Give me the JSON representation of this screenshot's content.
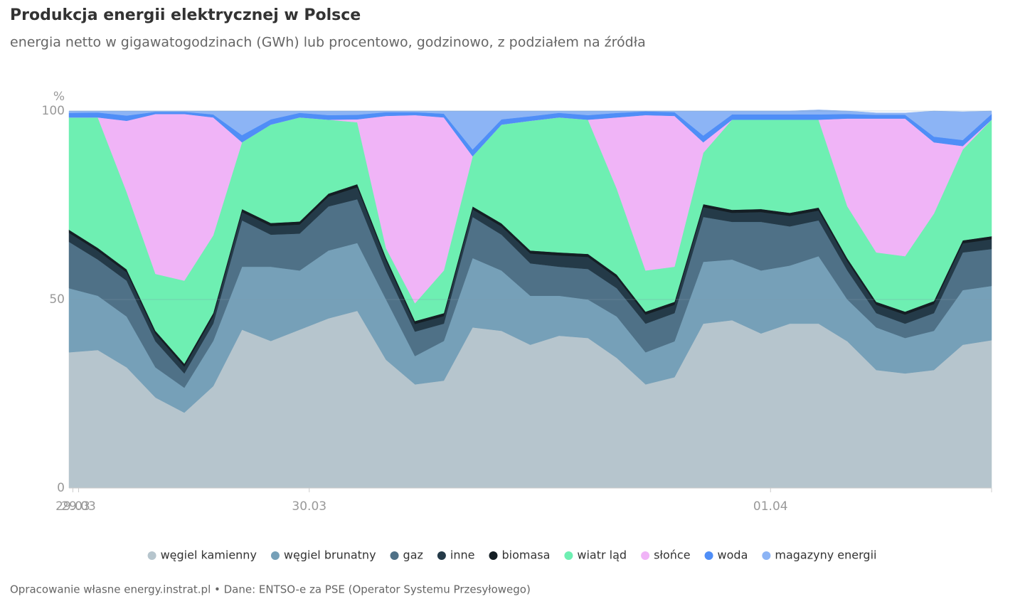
{
  "chart_data": {
    "type": "stacked_area",
    "title": "Produkcja energii elektrycznej w Polsce",
    "subtitle": "energia netto w gigawatogodzinach (GWh) lub procentowo, godzinowo, z podziałem na źródła",
    "y_label": "%",
    "source": "Opracowanie własne energy.instrat.pl • Dane: ENTSO-e za PSE (Operator Systemu Przesyłowego)",
    "x": [
      -1,
      2,
      5,
      8,
      11,
      14,
      17,
      20,
      23,
      26,
      29,
      32,
      35,
      38,
      41,
      44,
      47,
      50,
      53,
      56,
      59,
      62,
      65,
      68,
      71,
      74,
      77,
      80,
      83,
      86,
      89,
      92,
      95
    ],
    "xlim": [
      -1,
      95
    ],
    "xticks": [
      {
        "value": -0.6,
        "label": "29.03"
      },
      {
        "value": 0,
        "label": "29.03"
      },
      {
        "value": 24,
        "label": "30.03"
      },
      {
        "value": 72,
        "label": "01.04"
      }
    ],
    "ylim": [
      0,
      100
    ],
    "yticks": [
      0,
      50,
      100
    ],
    "grid": true,
    "series": [
      {
        "name": "węgiel kamienny",
        "color": "#b6c5cd",
        "values": [
          36,
          36.6,
          32,
          24,
          20,
          27,
          42,
          39,
          42,
          45,
          47,
          34,
          27.5,
          28.5,
          42.6,
          41.7,
          38,
          40.4,
          39.8,
          34.5,
          27.5,
          29.4,
          43.6,
          44.5,
          41,
          43.6,
          43.6,
          38.9,
          31.3,
          30.4,
          31.3,
          38,
          39.2
        ]
      },
      {
        "name": "węgiel brunatny",
        "color": "#76a0b8",
        "values": [
          17,
          14.4,
          13.5,
          8,
          6.6,
          12,
          16.7,
          19.7,
          15.7,
          18,
          18,
          16,
          7.5,
          10.5,
          18.4,
          16,
          13,
          10.6,
          10.2,
          11,
          8.5,
          9.5,
          16.4,
          16.1,
          16.7,
          15.4,
          17.9,
          11.1,
          11.3,
          9.4,
          10.4,
          14.5,
          14.4
        ]
      },
      {
        "name": "gaz",
        "color": "#4f7187",
        "values": [
          12.3,
          9.6,
          9.5,
          6.9,
          3.8,
          4.6,
          12.3,
          8.5,
          9.8,
          11.7,
          11.6,
          7.7,
          6.5,
          4.6,
          10.9,
          9.5,
          8.6,
          7.7,
          8.1,
          7.5,
          7.6,
          7.5,
          11.9,
          10,
          12.9,
          10.4,
          9.5,
          7.7,
          3.8,
          3.8,
          4.7,
          10,
          9.8
        ]
      },
      {
        "name": "inne",
        "color": "#243a48",
        "values": [
          2.4,
          2.3,
          2.2,
          2,
          1.8,
          2,
          2.2,
          2.3,
          2.4,
          2.6,
          3.2,
          2.6,
          2,
          2,
          2,
          2.2,
          2.6,
          3,
          3.2,
          2.8,
          2.4,
          2.2,
          2.6,
          2.4,
          2.6,
          2.8,
          2.6,
          2.4,
          2.2,
          2.4,
          2.4,
          2.4,
          2.6
        ]
      },
      {
        "name": "biomasa",
        "color": "#141e24",
        "values": [
          0.8,
          0.8,
          0.8,
          0.8,
          0.8,
          0.8,
          0.8,
          0.8,
          0.8,
          0.8,
          0.8,
          0.8,
          0.8,
          0.8,
          0.8,
          0.8,
          0.8,
          0.8,
          0.8,
          0.8,
          0.8,
          0.8,
          0.8,
          0.8,
          0.8,
          0.8,
          0.8,
          0.8,
          0.8,
          0.8,
          0.8,
          0.8,
          0.8
        ]
      },
      {
        "name": "wiatr ląd",
        "color": "#6eefb2",
        "values": [
          29.8,
          34.6,
          20.5,
          15.1,
          22,
          20.6,
          17.7,
          26.1,
          27.6,
          19.6,
          16.4,
          2.5,
          4.7,
          11.3,
          13.3,
          26.2,
          34.4,
          35.8,
          35.6,
          22.8,
          10.9,
          9.3,
          13.6,
          23.9,
          23.7,
          24.7,
          23.3,
          13.8,
          13.1,
          14.7,
          23.2,
          24.1,
          30.9
        ]
      },
      {
        "name": "słońce",
        "color": "#f0b4f7",
        "values": [
          0,
          0,
          18.9,
          42.4,
          44.2,
          31.3,
          0,
          0,
          0,
          0,
          0.8,
          35.1,
          49.9,
          40.6,
          0,
          0,
          0,
          0,
          0,
          18.9,
          41.2,
          40,
          2.8,
          0,
          0,
          0,
          0,
          23.3,
          35.5,
          36.5,
          18.9,
          0.9,
          0
        ]
      },
      {
        "name": "woda",
        "color": "#4f8ef7",
        "values": [
          1.2,
          1.3,
          1.4,
          0.6,
          0.6,
          0.8,
          1.9,
          1.4,
          1.2,
          1.2,
          1.2,
          1,
          0.8,
          1,
          1.8,
          1.4,
          1.2,
          1.2,
          1.2,
          1.2,
          1,
          1,
          1.8,
          1.4,
          1.4,
          1.4,
          1.4,
          1.2,
          1,
          1,
          1.5,
          1.6,
          1.5
        ]
      },
      {
        "name": "magazyny energii",
        "color": "#8cb4f5",
        "values": [
          0.5,
          0.4,
          1.2,
          0.2,
          0.2,
          0.9,
          6.4,
          2.2,
          0.5,
          1.1,
          1,
          0.3,
          0.3,
          0.7,
          10.2,
          2.2,
          1.4,
          0.5,
          1.1,
          0.5,
          0.1,
          0.3,
          6.5,
          0.9,
          0.9,
          0.9,
          1.2,
          0.8,
          0.5,
          0.5,
          6.8,
          7.5,
          0.8
        ]
      }
    ]
  }
}
